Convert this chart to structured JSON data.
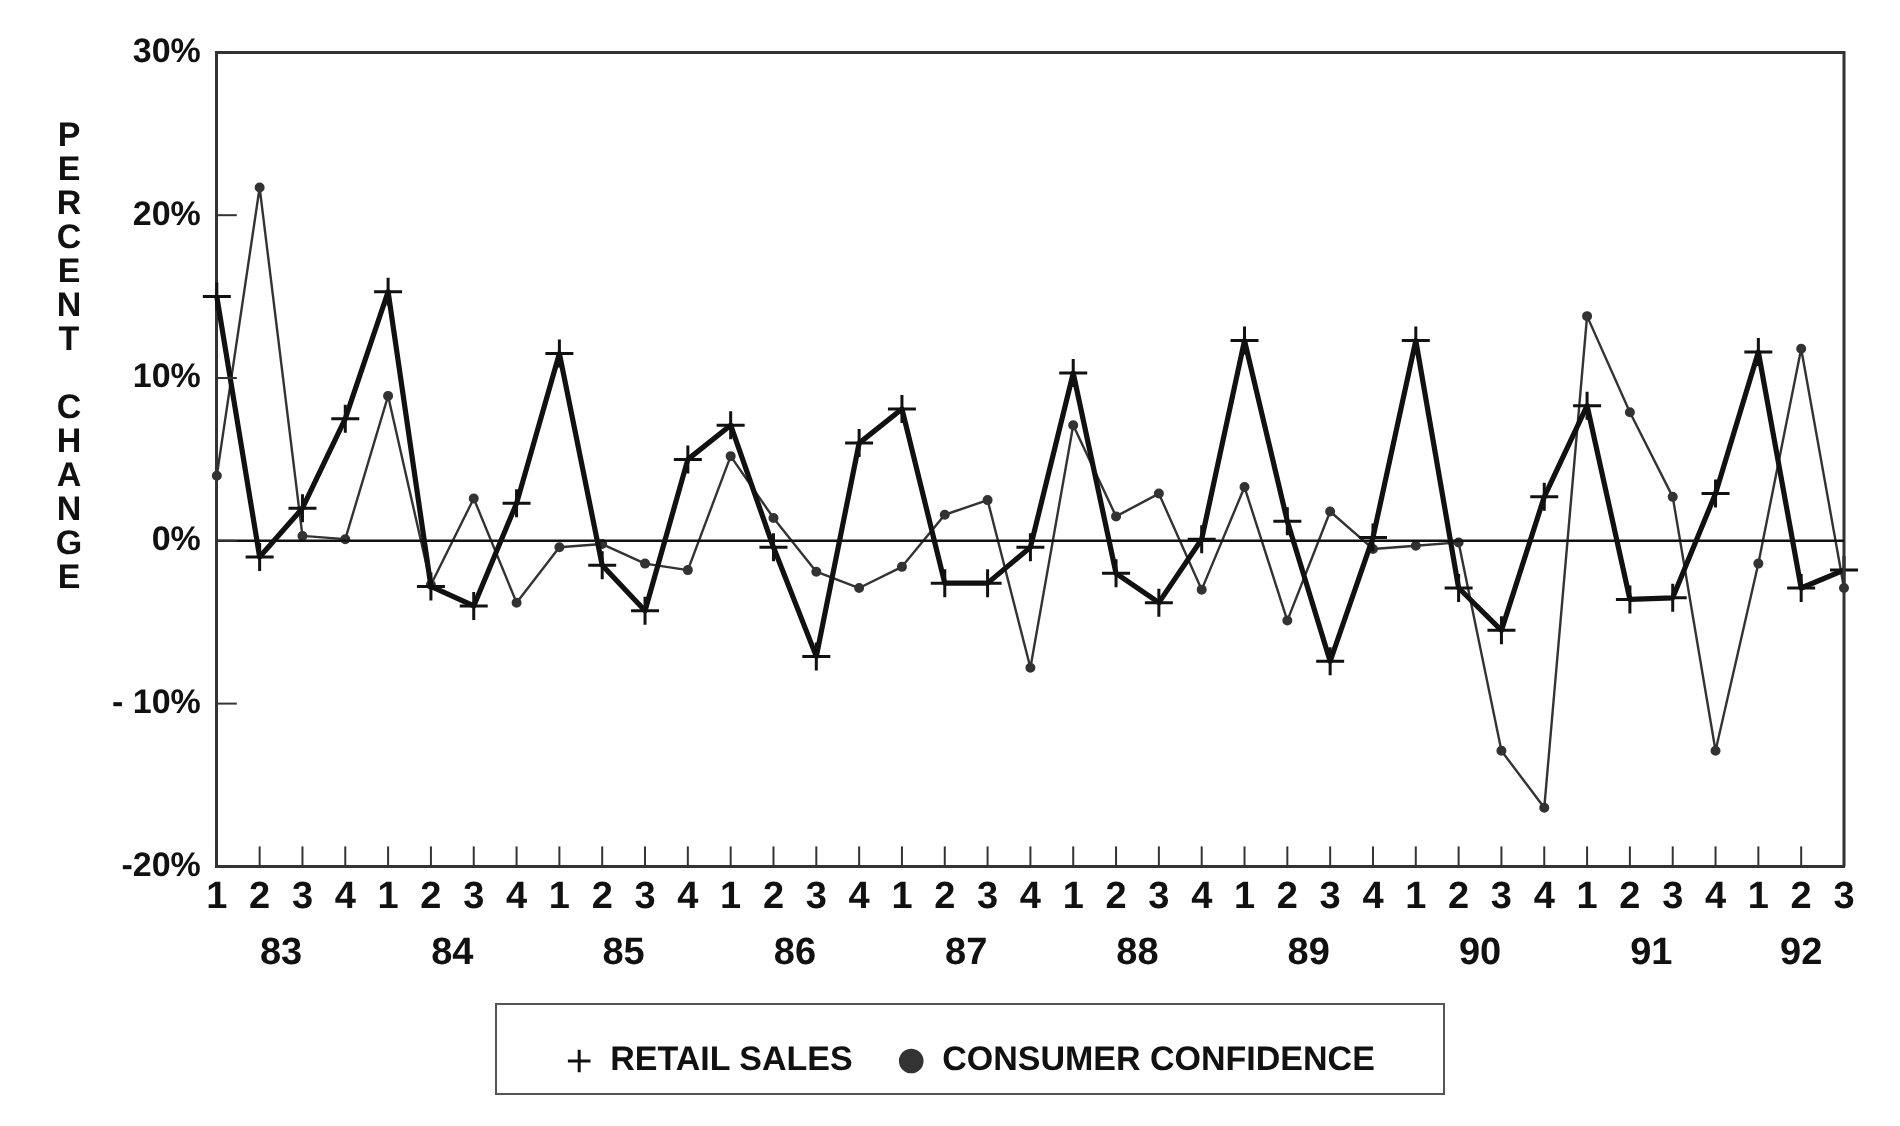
{
  "chart_data": {
    "type": "line",
    "ylabel": "PERCENT CHANGE",
    "categories": [
      "1",
      "2",
      "3",
      "4",
      "1",
      "2",
      "3",
      "4",
      "1",
      "2",
      "3",
      "4",
      "1",
      "2",
      "3",
      "4",
      "1",
      "2",
      "3",
      "4",
      "1",
      "2",
      "3",
      "4",
      "1",
      "2",
      "3",
      "4",
      "1",
      "2",
      "3",
      "4",
      "1",
      "2",
      "3",
      "4",
      "1",
      "2",
      "3"
    ],
    "annotations": [
      "83",
      "84",
      "85",
      "86",
      "87",
      "88",
      "89",
      "90",
      "91",
      "92"
    ],
    "series": [
      {
        "name": "CONSUMER CONFIDENCE",
        "color": "#333333",
        "marker": "circle",
        "values": [
          4,
          21.7,
          0.3,
          0.1,
          8.9,
          -2.7,
          2.6,
          -3.8,
          -0.4,
          -0.2,
          -1.4,
          -1.8,
          5.2,
          1.4,
          -1.9,
          -2.9,
          -1.6,
          1.6,
          2.5,
          -7.8,
          7.1,
          1.5,
          2.9,
          -3,
          3.3,
          -4.9,
          1.8,
          -0.5,
          -0.3,
          -0.1,
          -12.9,
          -16.4,
          13.8,
          7.9,
          2.7,
          -12.9,
          -1.4,
          11.8,
          -2.9
        ]
      },
      {
        "name": "RETAIL SALES",
        "color": "#111111",
        "marker": "cross",
        "values": [
          15,
          -1,
          2,
          7.5,
          15.3,
          -2.8,
          -4,
          2.3,
          11.5,
          -1.5,
          -4.3,
          5,
          7.1,
          -0.4,
          -7.1,
          6,
          8.1,
          -2.6,
          -2.6,
          -0.4,
          10.3,
          -2,
          -3.8,
          0.1,
          12.3,
          1.2,
          -7.4,
          0.2,
          12.3,
          -2.9,
          -5.5,
          2.7,
          8.3,
          -3.6,
          -3.5,
          2.9,
          11.6,
          -2.9,
          -1.8
        ]
      }
    ],
    "ylim": [
      -20,
      30
    ],
    "yticks": [
      {
        "value": -20,
        "label": "-20%"
      },
      {
        "value": -10,
        "label": "- 10%"
      },
      {
        "value": 0,
        "label": "0%"
      },
      {
        "value": 10,
        "label": "10%"
      },
      {
        "value": 20,
        "label": "20%"
      },
      {
        "value": 30,
        "label": "30%"
      }
    ],
    "ref_lines": [
      {
        "axis": "y",
        "value": 0,
        "color": "#111111"
      }
    ],
    "grid": false,
    "legend": "bottom",
    "line_style": "solid"
  }
}
